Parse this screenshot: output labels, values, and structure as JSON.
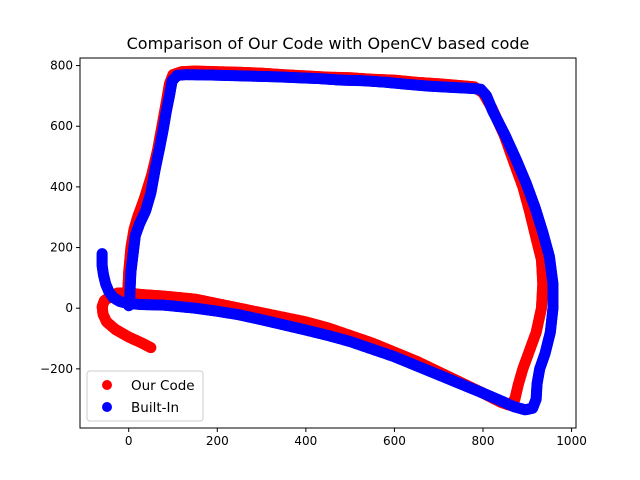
{
  "chart_data": {
    "type": "scatter",
    "title": "Comparison of Our Code with OpenCV based code",
    "xlabel": "",
    "ylabel": "",
    "xlim": [
      -110,
      1010
    ],
    "ylim": [
      -395,
      825
    ],
    "xticks": [
      0,
      200,
      400,
      600,
      800,
      1000
    ],
    "yticks": [
      -200,
      0,
      200,
      400,
      600,
      800
    ],
    "grid": false,
    "legend_position": "lower-left",
    "series": [
      {
        "name": "Our Code",
        "color": "#ff0000",
        "points": [
          [
            50,
            -130
          ],
          [
            30,
            -115
          ],
          [
            0,
            -95
          ],
          [
            -30,
            -70
          ],
          [
            -50,
            -45
          ],
          [
            -58,
            -20
          ],
          [
            -60,
            5
          ],
          [
            -55,
            25
          ],
          [
            -40,
            40
          ],
          [
            -25,
            50
          ],
          [
            0,
            50
          ],
          [
            30,
            45
          ],
          [
            80,
            40
          ],
          [
            150,
            30
          ],
          [
            200,
            15
          ],
          [
            250,
            0
          ],
          [
            300,
            -15
          ],
          [
            350,
            -30
          ],
          [
            400,
            -45
          ],
          [
            450,
            -65
          ],
          [
            500,
            -90
          ],
          [
            550,
            -115
          ],
          [
            600,
            -145
          ],
          [
            650,
            -175
          ],
          [
            700,
            -210
          ],
          [
            750,
            -245
          ],
          [
            800,
            -280
          ],
          [
            840,
            -310
          ],
          [
            860,
            -320
          ],
          [
            872,
            -300
          ],
          [
            880,
            -250
          ],
          [
            890,
            -200
          ],
          [
            905,
            -140
          ],
          [
            920,
            -80
          ],
          [
            932,
            0
          ],
          [
            935,
            80
          ],
          [
            932,
            160
          ],
          [
            920,
            230
          ],
          [
            905,
            320
          ],
          [
            890,
            400
          ],
          [
            870,
            480
          ],
          [
            848,
            570
          ],
          [
            820,
            660
          ],
          [
            800,
            710
          ],
          [
            780,
            730
          ],
          [
            740,
            735
          ],
          [
            700,
            740
          ],
          [
            650,
            745
          ],
          [
            600,
            752
          ],
          [
            550,
            755
          ],
          [
            500,
            760
          ],
          [
            450,
            762
          ],
          [
            400,
            766
          ],
          [
            350,
            770
          ],
          [
            300,
            775
          ],
          [
            250,
            778
          ],
          [
            200,
            780
          ],
          [
            150,
            782
          ],
          [
            120,
            780
          ],
          [
            100,
            770
          ],
          [
            92,
            740
          ],
          [
            85,
            680
          ],
          [
            75,
            600
          ],
          [
            65,
            520
          ],
          [
            52,
            440
          ],
          [
            35,
            360
          ],
          [
            20,
            300
          ],
          [
            12,
            260
          ],
          [
            5,
            200
          ],
          [
            0,
            120
          ],
          [
            -2,
            60
          ],
          [
            -5,
            30
          ]
        ]
      },
      {
        "name": "Built-In",
        "color": "#0000ff",
        "points": [
          [
            -60,
            180
          ],
          [
            -60,
            140
          ],
          [
            -57,
            110
          ],
          [
            -52,
            80
          ],
          [
            -45,
            55
          ],
          [
            -35,
            35
          ],
          [
            -20,
            22
          ],
          [
            0,
            15
          ],
          [
            30,
            12
          ],
          [
            80,
            10
          ],
          [
            150,
            0
          ],
          [
            200,
            -10
          ],
          [
            250,
            -22
          ],
          [
            300,
            -38
          ],
          [
            350,
            -55
          ],
          [
            400,
            -72
          ],
          [
            450,
            -90
          ],
          [
            500,
            -110
          ],
          [
            550,
            -135
          ],
          [
            600,
            -160
          ],
          [
            650,
            -190
          ],
          [
            700,
            -220
          ],
          [
            750,
            -250
          ],
          [
            800,
            -280
          ],
          [
            840,
            -305
          ],
          [
            870,
            -325
          ],
          [
            895,
            -335
          ],
          [
            912,
            -330
          ],
          [
            920,
            -300
          ],
          [
            922,
            -250
          ],
          [
            928,
            -200
          ],
          [
            940,
            -150
          ],
          [
            952,
            -80
          ],
          [
            958,
            0
          ],
          [
            958,
            80
          ],
          [
            950,
            170
          ],
          [
            935,
            250
          ],
          [
            918,
            330
          ],
          [
            898,
            410
          ],
          [
            875,
            490
          ],
          [
            850,
            570
          ],
          [
            822,
            650
          ],
          [
            808,
            700
          ],
          [
            795,
            722
          ],
          [
            770,
            725
          ],
          [
            730,
            728
          ],
          [
            680,
            732
          ],
          [
            630,
            738
          ],
          [
            580,
            745
          ],
          [
            530,
            750
          ],
          [
            480,
            752
          ],
          [
            430,
            757
          ],
          [
            380,
            760
          ],
          [
            330,
            763
          ],
          [
            280,
            765
          ],
          [
            230,
            767
          ],
          [
            180,
            769
          ],
          [
            130,
            770
          ],
          [
            110,
            768
          ],
          [
            98,
            750
          ],
          [
            92,
            700
          ],
          [
            85,
            650
          ],
          [
            78,
            590
          ],
          [
            70,
            530
          ],
          [
            60,
            460
          ],
          [
            50,
            380
          ],
          [
            38,
            320
          ],
          [
            25,
            280
          ],
          [
            15,
            240
          ],
          [
            10,
            180
          ],
          [
            5,
            120
          ],
          [
            3,
            60
          ],
          [
            2,
            20
          ],
          [
            0,
            8
          ]
        ]
      }
    ]
  }
}
